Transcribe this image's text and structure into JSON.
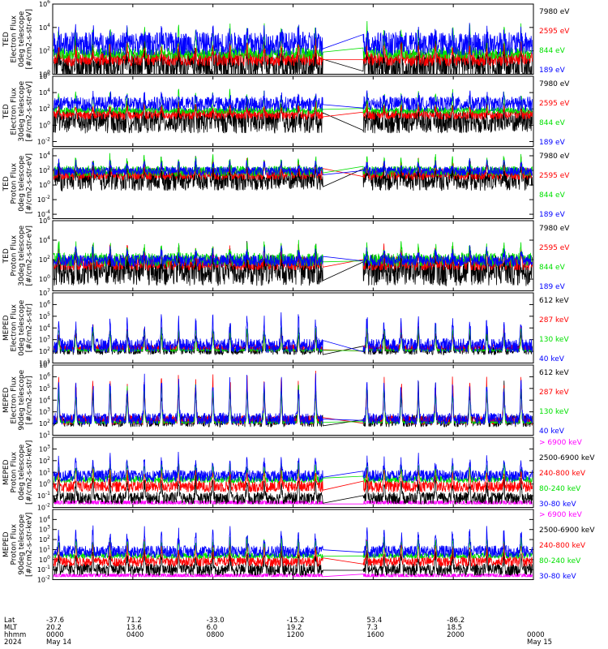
{
  "colors": {
    "black": "#000000",
    "red": "#ff0000",
    "green": "#00e000",
    "blue": "#0000ff",
    "magenta": "#ff00ff"
  },
  "chart_data": {
    "type": "line",
    "x_axis": {
      "rows": [
        {
          "label": "Lat",
          "values": [
            "-37.6",
            "71.2",
            "-33.0",
            "-15.2",
            "53.4",
            "-86.2",
            ""
          ]
        },
        {
          "label": "MLT",
          "values": [
            "20.2",
            "13.6",
            "6.0",
            "19.2",
            "7.3",
            "18.5",
            ""
          ]
        },
        {
          "label": "hhmm",
          "values": [
            "0000",
            "0400",
            "0800",
            "1200",
            "1600",
            "2000",
            "0000"
          ]
        },
        {
          "label": "2024",
          "values": [
            "May 14",
            "",
            "",
            "",
            "",
            "",
            "May 15"
          ]
        }
      ],
      "hours": [
        0,
        4,
        8,
        12,
        16,
        20,
        24
      ],
      "data_gap_hours": [
        13.5,
        15.5
      ]
    },
    "panels": [
      {
        "ylabel": [
          "TED",
          "Electron Flux",
          "0deg telescope",
          "[#/cm2-s-str-eV]"
        ],
        "ticks": [
          {
            "m": "10",
            "e": "6",
            "exp": 6
          },
          {
            "m": "10",
            "e": "4",
            "exp": 4
          },
          {
            "m": "10",
            "e": "2",
            "exp": 2
          },
          {
            "m": "10",
            "e": "0",
            "exp": 0
          }
        ],
        "ylim_exp": [
          0,
          6
        ],
        "legend": [
          {
            "text": "7980 eV",
            "color": "black"
          },
          {
            "text": "2595 eV",
            "color": "red"
          },
          {
            "text": "844 eV",
            "color": "green"
          },
          {
            "text": "189 eV",
            "color": "blue"
          }
        ],
        "series": [
          {
            "name": "7980 eV",
            "color": "black",
            "base": 0.6,
            "spread": 1.4,
            "peak": 2.2
          },
          {
            "name": "2595 eV",
            "color": "red",
            "base": 1.3,
            "spread": 0.6,
            "peak": 2.6
          },
          {
            "name": "844 eV",
            "color": "green",
            "base": 1.8,
            "spread": 0.5,
            "peak": 4.3
          },
          {
            "name": "189 eV",
            "color": "blue",
            "base": 2.6,
            "spread": 1.0,
            "peak": 3.6
          }
        ]
      },
      {
        "ylabel": [
          "TED",
          "Electron Flux",
          "30deg telescope",
          "[#/cm2-s-str-eV]"
        ],
        "ticks": [
          {
            "m": "10",
            "e": "6",
            "exp": 6
          },
          {
            "m": "10",
            "e": "4",
            "exp": 4
          },
          {
            "m": "10",
            "e": "2",
            "exp": 2
          },
          {
            "m": "10",
            "e": "0",
            "exp": 0
          },
          {
            "m": "10",
            "e": "-2",
            "exp": -2
          }
        ],
        "ylim_exp": [
          -2.6,
          6
        ],
        "legend": [
          {
            "text": "7980 eV",
            "color": "black"
          },
          {
            "text": "2595 eV",
            "color": "red"
          },
          {
            "text": "844 eV",
            "color": "green"
          },
          {
            "text": "189 eV",
            "color": "blue"
          }
        ],
        "series": [
          {
            "name": "7980 eV",
            "color": "black",
            "base": 0.5,
            "spread": 1.5,
            "peak": 2.0
          },
          {
            "name": "2595 eV",
            "color": "red",
            "base": 1.3,
            "spread": 0.6,
            "peak": 2.5
          },
          {
            "name": "844 eV",
            "color": "green",
            "base": 1.8,
            "spread": 0.4,
            "peak": 4.2
          },
          {
            "name": "189 eV",
            "color": "blue",
            "base": 2.6,
            "spread": 0.9,
            "peak": 3.6
          }
        ]
      },
      {
        "ylabel": [
          "TED",
          "Proton Flux",
          "0deg telescope",
          "[#/cm2-s-str-eV]"
        ],
        "ticks": [
          {
            "m": "10",
            "e": "4",
            "exp": 4
          },
          {
            "m": "10",
            "e": "2",
            "exp": 2
          },
          {
            "m": "10",
            "e": "0",
            "exp": 0
          },
          {
            "m": "10",
            "e": "-2",
            "exp": -2
          },
          {
            "m": "10",
            "e": "-4",
            "exp": -4
          }
        ],
        "ylim_exp": [
          -4.6,
          5
        ],
        "legend": [
          {
            "text": "7980 eV",
            "color": "black"
          },
          {
            "text": "2595 eV",
            "color": "red"
          },
          {
            "text": "844 eV",
            "color": "green"
          },
          {
            "text": "189 eV",
            "color": "blue"
          }
        ],
        "series": [
          {
            "name": "7980 eV",
            "color": "black",
            "base": 0.8,
            "spread": 1.6,
            "peak": 2.5
          },
          {
            "name": "2595 eV",
            "color": "red",
            "base": 1.5,
            "spread": 0.8,
            "peak": 3.4
          },
          {
            "name": "844 eV",
            "color": "green",
            "base": 1.9,
            "spread": 0.7,
            "peak": 3.9
          },
          {
            "name": "189 eV",
            "color": "blue",
            "base": 1.9,
            "spread": 0.6,
            "peak": 3.2
          }
        ]
      },
      {
        "ylabel": [
          "TED",
          "Proton Flux",
          "30deg telescope",
          "[#/cm2-s-str-eV]"
        ],
        "ticks": [
          {
            "m": "10",
            "e": "6",
            "exp": 6
          },
          {
            "m": "10",
            "e": "4",
            "exp": 4
          },
          {
            "m": "10",
            "e": "2",
            "exp": 2
          },
          {
            "m": "10",
            "e": "0",
            "exp": 0
          }
        ],
        "ylim_exp": [
          -1.2,
          6
        ],
        "legend": [
          {
            "text": "7980 eV",
            "color": "black"
          },
          {
            "text": "2595 eV",
            "color": "red"
          },
          {
            "text": "844 eV",
            "color": "green"
          },
          {
            "text": "189 eV",
            "color": "blue"
          }
        ],
        "series": [
          {
            "name": "7980 eV",
            "color": "black",
            "base": 0.9,
            "spread": 1.6,
            "peak": 2.4
          },
          {
            "name": "2595 eV",
            "color": "red",
            "base": 1.6,
            "spread": 0.7,
            "peak": 3.2
          },
          {
            "name": "844 eV",
            "color": "green",
            "base": 2.0,
            "spread": 0.7,
            "peak": 3.6
          },
          {
            "name": "189 eV",
            "color": "blue",
            "base": 1.9,
            "spread": 0.6,
            "peak": 3.0
          }
        ]
      },
      {
        "ylabel": [
          "MEPED",
          "Electron Flux",
          "0deg telescope",
          "[#/cm2-s-str]"
        ],
        "ticks": [
          {
            "m": "10",
            "e": "7",
            "exp": 7
          },
          {
            "m": "10",
            "e": "6",
            "exp": 6
          },
          {
            "m": "10",
            "e": "5",
            "exp": 5
          },
          {
            "m": "10",
            "e": "4",
            "exp": 4
          },
          {
            "m": "10",
            "e": "3",
            "exp": 3
          },
          {
            "m": "10",
            "e": "2",
            "exp": 2
          },
          {
            "m": "10",
            "e": "1",
            "exp": 1
          }
        ],
        "ylim_exp": [
          1,
          7
        ],
        "legend": [
          {
            "text": "612 keV",
            "color": "black"
          },
          {
            "text": "287 keV",
            "color": "red"
          },
          {
            "text": "130 keV",
            "color": "green"
          },
          {
            "text": "40 keV",
            "color": "blue"
          }
        ],
        "series": [
          {
            "name": "612 keV",
            "color": "black",
            "base": 2.1,
            "spread": 0.4,
            "peak": 3.8
          },
          {
            "name": "287 keV",
            "color": "red",
            "base": 2.3,
            "spread": 0.3,
            "peak": 4.2
          },
          {
            "name": "130 keV",
            "color": "green",
            "base": 2.1,
            "spread": 0.1,
            "peak": 4.4
          },
          {
            "name": "40 keV",
            "color": "blue",
            "base": 2.5,
            "spread": 0.6,
            "peak": 5.0
          }
        ]
      },
      {
        "ylabel": [
          "MEPED",
          "Electron Flux",
          "90deg telescope",
          "[#/cm2-s-str]"
        ],
        "ticks": [
          {
            "m": "10",
            "e": "7",
            "exp": 7
          },
          {
            "m": "10",
            "e": "6",
            "exp": 6
          },
          {
            "m": "10",
            "e": "5",
            "exp": 5
          },
          {
            "m": "10",
            "e": "4",
            "exp": 4
          },
          {
            "m": "10",
            "e": "3",
            "exp": 3
          },
          {
            "m": "10",
            "e": "2",
            "exp": 2
          },
          {
            "m": "10",
            "e": "1",
            "exp": 1
          }
        ],
        "ylim_exp": [
          1,
          7
        ],
        "legend": [
          {
            "text": "612 keV",
            "color": "black"
          },
          {
            "text": "287 keV",
            "color": "red"
          },
          {
            "text": "130 keV",
            "color": "green"
          },
          {
            "text": "40 keV",
            "color": "blue"
          }
        ],
        "series": [
          {
            "name": "612 keV",
            "color": "black",
            "base": 2.2,
            "spread": 0.5,
            "peak": 5.5
          },
          {
            "name": "287 keV",
            "color": "red",
            "base": 2.3,
            "spread": 0.4,
            "peak": 6.2
          },
          {
            "name": "130 keV",
            "color": "green",
            "base": 2.1,
            "spread": 0.1,
            "peak": 5.6
          },
          {
            "name": "40 keV",
            "color": "blue",
            "base": 2.4,
            "spread": 0.5,
            "peak": 6.0
          }
        ]
      },
      {
        "ylabel": [
          "MEPED",
          "Proton Flux",
          "0deg telescope",
          "[#/cm2-s-str-keV]"
        ],
        "ticks": [
          {
            "m": "10",
            "e": "3",
            "exp": 3
          },
          {
            "m": "10",
            "e": "2",
            "exp": 2
          },
          {
            "m": "10",
            "e": "1",
            "exp": 1
          },
          {
            "m": "10",
            "e": "0",
            "exp": 0
          },
          {
            "m": "10",
            "e": "-1",
            "exp": -1
          },
          {
            "m": "10",
            "e": "-2",
            "exp": -2
          }
        ],
        "ylim_exp": [
          -2,
          4
        ],
        "legend": [
          {
            "text": "> 6900 keV",
            "color": "magenta"
          },
          {
            "text": "2500-6900 keV",
            "color": "black"
          },
          {
            "text": "240-800 keV",
            "color": "red"
          },
          {
            "text": "80-240 keV",
            "color": "green"
          },
          {
            "text": "30-80 keV",
            "color": "blue"
          }
        ],
        "series": [
          {
            "name": "> 6900 keV",
            "color": "magenta",
            "base": -1.7,
            "spread": 0.25,
            "peak": -1.0
          },
          {
            "name": "2500-6900 keV",
            "color": "black",
            "base": -1.2,
            "spread": 0.5,
            "peak": 0.5
          },
          {
            "name": "240-800 keV",
            "color": "red",
            "base": -0.2,
            "spread": 0.5,
            "peak": 1.5
          },
          {
            "name": "80-240 keV",
            "color": "green",
            "base": 0.4,
            "spread": 0.3,
            "peak": 1.8
          },
          {
            "name": "30-80 keV",
            "color": "blue",
            "base": 0.7,
            "spread": 0.5,
            "peak": 2.4
          }
        ]
      },
      {
        "ylabel": [
          "MEPED",
          "Proton Flux",
          "90deg telescope",
          "[#/cm2-s-str-keV]"
        ],
        "ticks": [
          {
            "m": "10",
            "e": "4",
            "exp": 4
          },
          {
            "m": "10",
            "e": "3",
            "exp": 3
          },
          {
            "m": "10",
            "e": "2",
            "exp": 2
          },
          {
            "m": "10",
            "e": "1",
            "exp": 1
          },
          {
            "m": "10",
            "e": "0",
            "exp": 0
          },
          {
            "m": "10",
            "e": "-1",
            "exp": -1
          },
          {
            "m": "10",
            "e": "-2",
            "exp": -2
          }
        ],
        "ylim_exp": [
          -2,
          5
        ],
        "legend": [
          {
            "text": "> 6900 keV",
            "color": "magenta"
          },
          {
            "text": "2500-6900 keV",
            "color": "black"
          },
          {
            "text": "240-800 keV",
            "color": "red"
          },
          {
            "text": "80-240 keV",
            "color": "green"
          },
          {
            "text": "30-80 keV",
            "color": "blue"
          }
        ],
        "series": [
          {
            "name": "> 6900 keV",
            "color": "magenta",
            "base": -1.7,
            "spread": 0.25,
            "peak": -1.0
          },
          {
            "name": "2500-6900 keV",
            "color": "black",
            "base": -1.0,
            "spread": 0.6,
            "peak": 0.8
          },
          {
            "name": "240-800 keV",
            "color": "red",
            "base": -0.2,
            "spread": 0.5,
            "peak": 1.8
          },
          {
            "name": "80-240 keV",
            "color": "green",
            "base": 0.4,
            "spread": 0.3,
            "peak": 2.2
          },
          {
            "name": "30-80 keV",
            "color": "blue",
            "base": 0.8,
            "spread": 0.6,
            "peak": 3.0
          }
        ]
      }
    ]
  }
}
